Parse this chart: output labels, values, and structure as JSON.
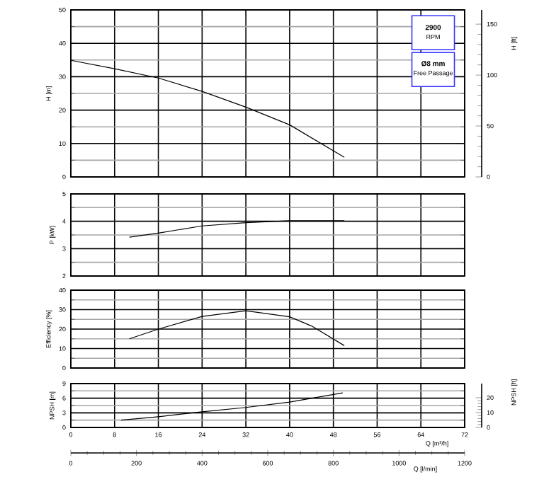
{
  "chart_data": [
    {
      "type": "line",
      "ylabel": "H [m]",
      "y2label": "H [ft]",
      "xlim": [
        0,
        72
      ],
      "xticks": [
        0,
        8,
        16,
        24,
        32,
        40,
        48,
        56,
        64,
        72
      ],
      "ylim": [
        0,
        50
      ],
      "yticks": [
        0,
        10,
        20,
        30,
        40,
        50
      ],
      "y2lim": [
        0,
        164
      ],
      "y2ticks": [
        0,
        50,
        100,
        150
      ],
      "grid": true,
      "marker": "none",
      "tick_labels": "y",
      "annotations": [
        "2900",
        "RPM",
        "Ø8 mm",
        "Free Passage"
      ],
      "series": [
        {
          "color": "#000000",
          "x": [
            0,
            8,
            16,
            24,
            32,
            40,
            50
          ],
          "values": [
            34.9,
            32.4,
            29.6,
            25.6,
            20.9,
            15.6,
            5.9
          ]
        }
      ]
    },
    {
      "type": "line",
      "ylabel": "P [kW]",
      "xlim": [
        0,
        72
      ],
      "xticks": [
        0,
        8,
        16,
        24,
        32,
        40,
        48,
        56,
        64,
        72
      ],
      "ylim": [
        2,
        5
      ],
      "yticks": [
        2,
        3,
        4,
        5
      ],
      "grid": true,
      "marker": "none",
      "tick_labels": "y",
      "series": [
        {
          "color": "#000000",
          "x": [
            10.7,
            16,
            24,
            32,
            40,
            50
          ],
          "values": [
            3.42,
            3.57,
            3.83,
            3.95,
            4.02,
            4.02
          ]
        }
      ]
    },
    {
      "type": "line",
      "ylabel": "Efficiency [%]",
      "xlim": [
        0,
        72
      ],
      "xticks": [
        0,
        8,
        16,
        24,
        32,
        40,
        48,
        56,
        64,
        72
      ],
      "ylim": [
        0,
        40
      ],
      "yticks": [
        0,
        10,
        20,
        30,
        40
      ],
      "grid": true,
      "marker": "none",
      "tick_labels": "y",
      "series": [
        {
          "color": "#000000",
          "x": [
            10.7,
            16,
            24,
            32,
            40,
            44,
            50
          ],
          "values": [
            15,
            20,
            26.5,
            29.4,
            26.3,
            21.6,
            11.5
          ]
        }
      ]
    },
    {
      "type": "line",
      "ylabel": "NPSH [m]",
      "y2label": "NPSH [ft]",
      "xlabel": "Q [m³/h]",
      "x2label": "Q [l/min]",
      "xlim": [
        0,
        72
      ],
      "xticks": [
        0,
        8,
        16,
        24,
        32,
        40,
        48,
        56,
        64,
        72
      ],
      "ylim": [
        0,
        9
      ],
      "yticks": [
        0,
        3,
        6,
        9
      ],
      "y2lim": [
        0,
        29.5
      ],
      "y2ticks": [
        0,
        10,
        20
      ],
      "x2lim": [
        0,
        1200
      ],
      "x2ticks": [
        0,
        200,
        400,
        600,
        800,
        1000,
        1200
      ],
      "grid": true,
      "marker": "none",
      "series": [
        {
          "color": "#000000",
          "x": [
            9.2,
            16,
            24,
            32,
            40,
            49.7
          ],
          "values": [
            1.5,
            2.2,
            3.2,
            4.1,
            5.2,
            7.1
          ]
        }
      ]
    }
  ]
}
